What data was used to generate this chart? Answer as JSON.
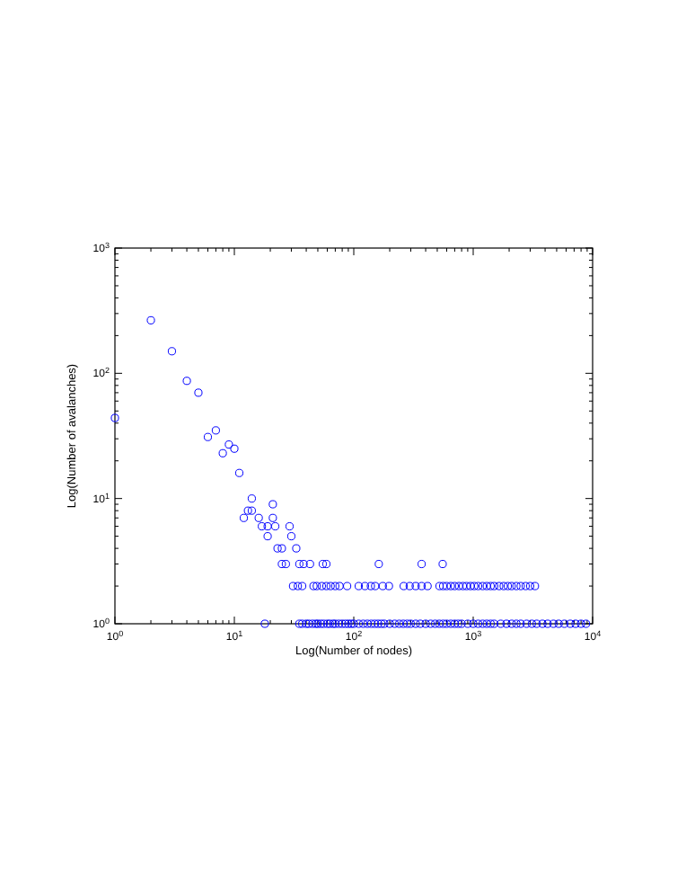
{
  "chart_data": {
    "type": "scatter",
    "xlabel": "Log(Number of nodes)",
    "ylabel": "Log(Number of avalanches)",
    "log": "xy",
    "marker": "circle",
    "grid": false,
    "xlim": [
      1,
      10000
    ],
    "ylim": [
      1,
      1000
    ],
    "xticks": [
      {
        "value": 1,
        "label": "10$^{0}$"
      },
      {
        "value": 2,
        "label": null
      },
      {
        "value": 3,
        "label": null
      },
      {
        "value": 4,
        "label": null
      },
      {
        "value": 5,
        "label": null
      },
      {
        "value": 6,
        "label": null
      },
      {
        "value": 7,
        "label": null
      },
      {
        "value": 8,
        "label": null
      },
      {
        "value": 9,
        "label": null
      },
      {
        "value": 10,
        "label": "10$^{1}$"
      },
      {
        "value": 20,
        "label": null
      },
      {
        "value": 30,
        "label": null
      },
      {
        "value": 40,
        "label": null
      },
      {
        "value": 50,
        "label": null
      },
      {
        "value": 60,
        "label": null
      },
      {
        "value": 70,
        "label": null
      },
      {
        "value": 80,
        "label": null
      },
      {
        "value": 90,
        "label": null
      },
      {
        "value": 100,
        "label": "10$^{2}$"
      },
      {
        "value": 200,
        "label": null
      },
      {
        "value": 300,
        "label": null
      },
      {
        "value": 400,
        "label": null
      },
      {
        "value": 500,
        "label": null
      },
      {
        "value": 600,
        "label": null
      },
      {
        "value": 700,
        "label": null
      },
      {
        "value": 800,
        "label": null
      },
      {
        "value": 900,
        "label": null
      },
      {
        "value": 1000,
        "label": "10$^{3}$"
      },
      {
        "value": 2000,
        "label": null
      },
      {
        "value": 3000,
        "label": null
      },
      {
        "value": 4000,
        "label": null
      },
      {
        "value": 5000,
        "label": null
      },
      {
        "value": 6000,
        "label": null
      },
      {
        "value": 7000,
        "label": null
      },
      {
        "value": 8000,
        "label": null
      },
      {
        "value": 9000,
        "label": null
      },
      {
        "value": 10000,
        "label": "10$^{4}$"
      }
    ],
    "yticks": [
      {
        "value": 1,
        "label": "10$^{0}$"
      },
      {
        "value": 2,
        "label": null
      },
      {
        "value": 3,
        "label": null
      },
      {
        "value": 4,
        "label": null
      },
      {
        "value": 5,
        "label": null
      },
      {
        "value": 6,
        "label": null
      },
      {
        "value": 7,
        "label": null
      },
      {
        "value": 8,
        "label": null
      },
      {
        "value": 9,
        "label": null
      },
      {
        "value": 10,
        "label": "10$^{1}$"
      },
      {
        "value": 20,
        "label": null
      },
      {
        "value": 30,
        "label": null
      },
      {
        "value": 40,
        "label": null
      },
      {
        "value": 50,
        "label": null
      },
      {
        "value": 60,
        "label": null
      },
      {
        "value": 70,
        "label": null
      },
      {
        "value": 80,
        "label": null
      },
      {
        "value": 90,
        "label": null
      },
      {
        "value": 100,
        "label": "10$^{2}$"
      },
      {
        "value": 200,
        "label": null
      },
      {
        "value": 300,
        "label": null
      },
      {
        "value": 400,
        "label": null
      },
      {
        "value": 500,
        "label": null
      },
      {
        "value": 600,
        "label": null
      },
      {
        "value": 700,
        "label": null
      },
      {
        "value": 800,
        "label": null
      },
      {
        "value": 900,
        "label": null
      },
      {
        "value": 1000,
        "label": "10$^{3}$"
      }
    ],
    "series": [
      {
        "color": "#0000ff",
        "x": [
          1,
          2,
          3,
          4,
          5,
          6,
          7,
          8,
          9,
          10,
          11,
          12,
          13,
          14,
          14,
          16,
          17,
          19,
          19,
          21,
          21,
          22,
          23,
          25,
          29,
          30,
          33,
          25,
          27,
          35,
          38,
          43,
          55,
          59,
          162,
          370,
          555,
          31,
          34,
          37,
          46,
          49,
          54,
          59,
          64,
          70,
          76,
          88,
          110,
          124,
          139,
          151,
          175,
          197,
          262,
          294,
          330,
          370,
          415,
          522,
          560,
          600,
          650,
          700,
          760,
          820,
          880,
          950,
          1020,
          1100,
          1200,
          1300,
          1400,
          1500,
          1650,
          1800,
          1950,
          2100,
          2300,
          2500,
          2750,
          3000,
          3290,
          18,
          35,
          37,
          40,
          42,
          45,
          48,
          50,
          53,
          56,
          60,
          63,
          67,
          70,
          75,
          80,
          85,
          90,
          95,
          100,
          110,
          120,
          130,
          140,
          150,
          160,
          170,
          180,
          200,
          220,
          240,
          260,
          280,
          300,
          330,
          360,
          400,
          440,
          480,
          520,
          560,
          600,
          650,
          700,
          750,
          800,
          900,
          1000,
          1100,
          1200,
          1300,
          1400,
          1500,
          1700,
          1900,
          2100,
          2300,
          2500,
          2800,
          3100,
          3400,
          3800,
          4200,
          4700,
          5200,
          5800,
          6500,
          7200,
          8000,
          8800
        ],
        "values": [
          44,
          265,
          150,
          87,
          70,
          31,
          35,
          23,
          27,
          25,
          16,
          7,
          8,
          10,
          8,
          7,
          6,
          6,
          5,
          9,
          7,
          6,
          4,
          4,
          6,
          5,
          4,
          3,
          3,
          3,
          3,
          3,
          3,
          3,
          3,
          3,
          3,
          2,
          2,
          2,
          2,
          2,
          2,
          2,
          2,
          2,
          2,
          2,
          2,
          2,
          2,
          2,
          2,
          2,
          2,
          2,
          2,
          2,
          2,
          2,
          2,
          2,
          2,
          2,
          2,
          2,
          2,
          2,
          2,
          2,
          2,
          2,
          2,
          2,
          2,
          2,
          2,
          2,
          2,
          2,
          2,
          2,
          2,
          1,
          1,
          1,
          1,
          1,
          1,
          1,
          1,
          1,
          1,
          1,
          1,
          1,
          1,
          1,
          1,
          1,
          1,
          1,
          1,
          1,
          1,
          1,
          1,
          1,
          1,
          1,
          1,
          1,
          1,
          1,
          1,
          1,
          1,
          1,
          1,
          1,
          1,
          1,
          1,
          1,
          1,
          1,
          1,
          1,
          1,
          1,
          1,
          1,
          1,
          1,
          1,
          1,
          1,
          1,
          1,
          1,
          1,
          1,
          1,
          1,
          1,
          1,
          1,
          1,
          1,
          1,
          1,
          1,
          1
        ]
      }
    ]
  }
}
